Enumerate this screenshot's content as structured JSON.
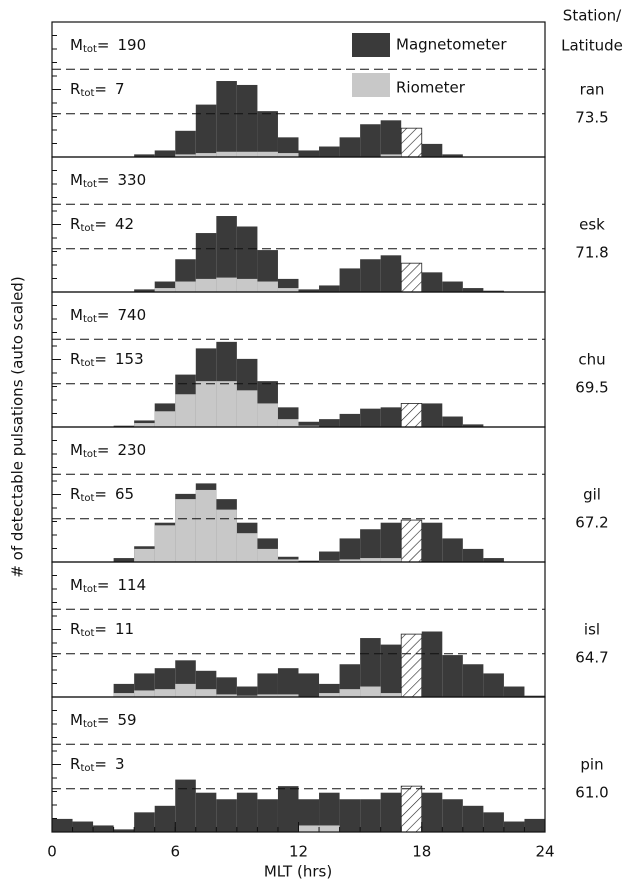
{
  "chart_data": {
    "type": "bar",
    "x_label": "MLT (hrs)",
    "y_label": "# of detectable pulsations (auto scaled)",
    "station_header": [
      "Station/",
      "Latitude"
    ],
    "symbols": {
      "m": "M",
      "r": "R",
      "sub": "tot",
      "eq": "="
    },
    "xlim": [
      0,
      24
    ],
    "xticks": [
      0,
      6,
      12,
      18,
      24
    ],
    "ylim": [
      0,
      100
    ],
    "reference_lines": [
      33,
      67
    ],
    "bins": [
      0,
      1,
      2,
      3,
      4,
      5,
      6,
      7,
      8,
      9,
      10,
      11,
      12,
      13,
      14,
      15,
      16,
      17,
      18,
      19,
      20,
      21,
      22,
      23,
      24
    ],
    "panels": [
      {
        "station": "ran",
        "latitude": "73.5",
        "mtot": 190,
        "rtot": 7,
        "hatched_range": [
          17,
          18.5
        ],
        "series": [
          {
            "name": "Magnetometer",
            "color": "#3a3a3a",
            "values": [
              0,
              0,
              0,
              0,
              2,
              5,
              20,
              40,
              58,
              55,
              35,
              15,
              5,
              8,
              15,
              25,
              28,
              22,
              10,
              2,
              0,
              0,
              0,
              0
            ]
          },
          {
            "name": "Riometer",
            "color": "#c8c8c8",
            "values": [
              0,
              0,
              0,
              0,
              0,
              0,
              2,
              3,
              4,
              4,
              4,
              3,
              0,
              0,
              0,
              0,
              2,
              0,
              0,
              0,
              0,
              0,
              0,
              0
            ]
          }
        ]
      },
      {
        "station": "esk",
        "latitude": "71.8",
        "mtot": 330,
        "rtot": 42,
        "hatched_range": [
          16.5,
          18
        ],
        "series": [
          {
            "name": "Magnetometer",
            "color": "#3a3a3a",
            "values": [
              0,
              0,
              0,
              0,
              2,
              8,
              25,
              45,
              58,
              50,
              32,
              10,
              2,
              5,
              18,
              25,
              28,
              22,
              15,
              8,
              3,
              1,
              0,
              0
            ]
          },
          {
            "name": "Riometer",
            "color": "#c8c8c8",
            "values": [
              0,
              0,
              0,
              0,
              0,
              3,
              8,
              10,
              11,
              10,
              8,
              3,
              0,
              0,
              0,
              0,
              0,
              0,
              0,
              0,
              0,
              0,
              0,
              0
            ]
          }
        ]
      },
      {
        "station": "chu",
        "latitude": "69.5",
        "mtot": 740,
        "rtot": 153,
        "hatched_range": [
          16.5,
          18.5
        ],
        "series": [
          {
            "name": "Magnetometer",
            "color": "#3a3a3a",
            "values": [
              0,
              0,
              0,
              1,
              5,
              18,
              40,
              60,
              65,
              52,
              35,
              15,
              4,
              6,
              10,
              14,
              15,
              18,
              18,
              8,
              2,
              0,
              0,
              0
            ]
          },
          {
            "name": "Riometer",
            "color": "#c8c8c8",
            "values": [
              0,
              0,
              0,
              0,
              3,
              12,
              25,
              35,
              35,
              28,
              18,
              6,
              1,
              0,
              0,
              0,
              0,
              0,
              0,
              0,
              0,
              0,
              0,
              0
            ]
          }
        ]
      },
      {
        "station": "gil",
        "latitude": "67.2",
        "mtot": 230,
        "rtot": 65,
        "hatched_range": [
          16.5,
          18.5
        ],
        "series": [
          {
            "name": "Magnetometer",
            "color": "#3a3a3a",
            "values": [
              0,
              0,
              0,
              3,
              12,
              30,
              52,
              60,
              48,
              30,
              18,
              4,
              1,
              8,
              18,
              25,
              30,
              32,
              30,
              18,
              10,
              3,
              0,
              0
            ]
          },
          {
            "name": "Riometer",
            "color": "#c8c8c8",
            "values": [
              0,
              0,
              0,
              0,
              10,
              28,
              48,
              55,
              40,
              22,
              10,
              2,
              0,
              1,
              2,
              3,
              3,
              0,
              0,
              0,
              0,
              0,
              0,
              0
            ]
          }
        ]
      },
      {
        "station": "isl",
        "latitude": "64.7",
        "mtot": 114,
        "rtot": 11,
        "hatched_range": [
          17,
          18.3
        ],
        "series": [
          {
            "name": "Magnetometer",
            "color": "#3a3a3a",
            "values": [
              0,
              0,
              0,
              10,
              18,
              22,
              28,
              20,
              15,
              8,
              18,
              22,
              18,
              10,
              25,
              45,
              40,
              48,
              50,
              32,
              25,
              18,
              8,
              1
            ]
          },
          {
            "name": "Riometer",
            "color": "#c8c8c8",
            "values": [
              0,
              0,
              0,
              3,
              5,
              6,
              10,
              6,
              2,
              1,
              2,
              2,
              0,
              3,
              6,
              8,
              3,
              0,
              0,
              0,
              0,
              0,
              0,
              0
            ]
          }
        ]
      },
      {
        "station": "pin",
        "latitude": "61.0",
        "mtot": 59,
        "rtot": 3,
        "hatched_range": [
          17,
          18.5
        ],
        "series": [
          {
            "name": "Magnetometer",
            "color": "#3a3a3a",
            "values": [
              10,
              8,
              5,
              2,
              15,
              20,
              40,
              30,
              25,
              30,
              25,
              35,
              25,
              30,
              25,
              25,
              30,
              35,
              30,
              25,
              20,
              15,
              8,
              10
            ]
          },
          {
            "name": "Riometer",
            "color": "#c8c8c8",
            "values": [
              0,
              0,
              0,
              0,
              0,
              0,
              0,
              0,
              0,
              0,
              0,
              0,
              5,
              5,
              0,
              0,
              0,
              0,
              0,
              0,
              0,
              0,
              0,
              0
            ]
          }
        ]
      }
    ]
  }
}
